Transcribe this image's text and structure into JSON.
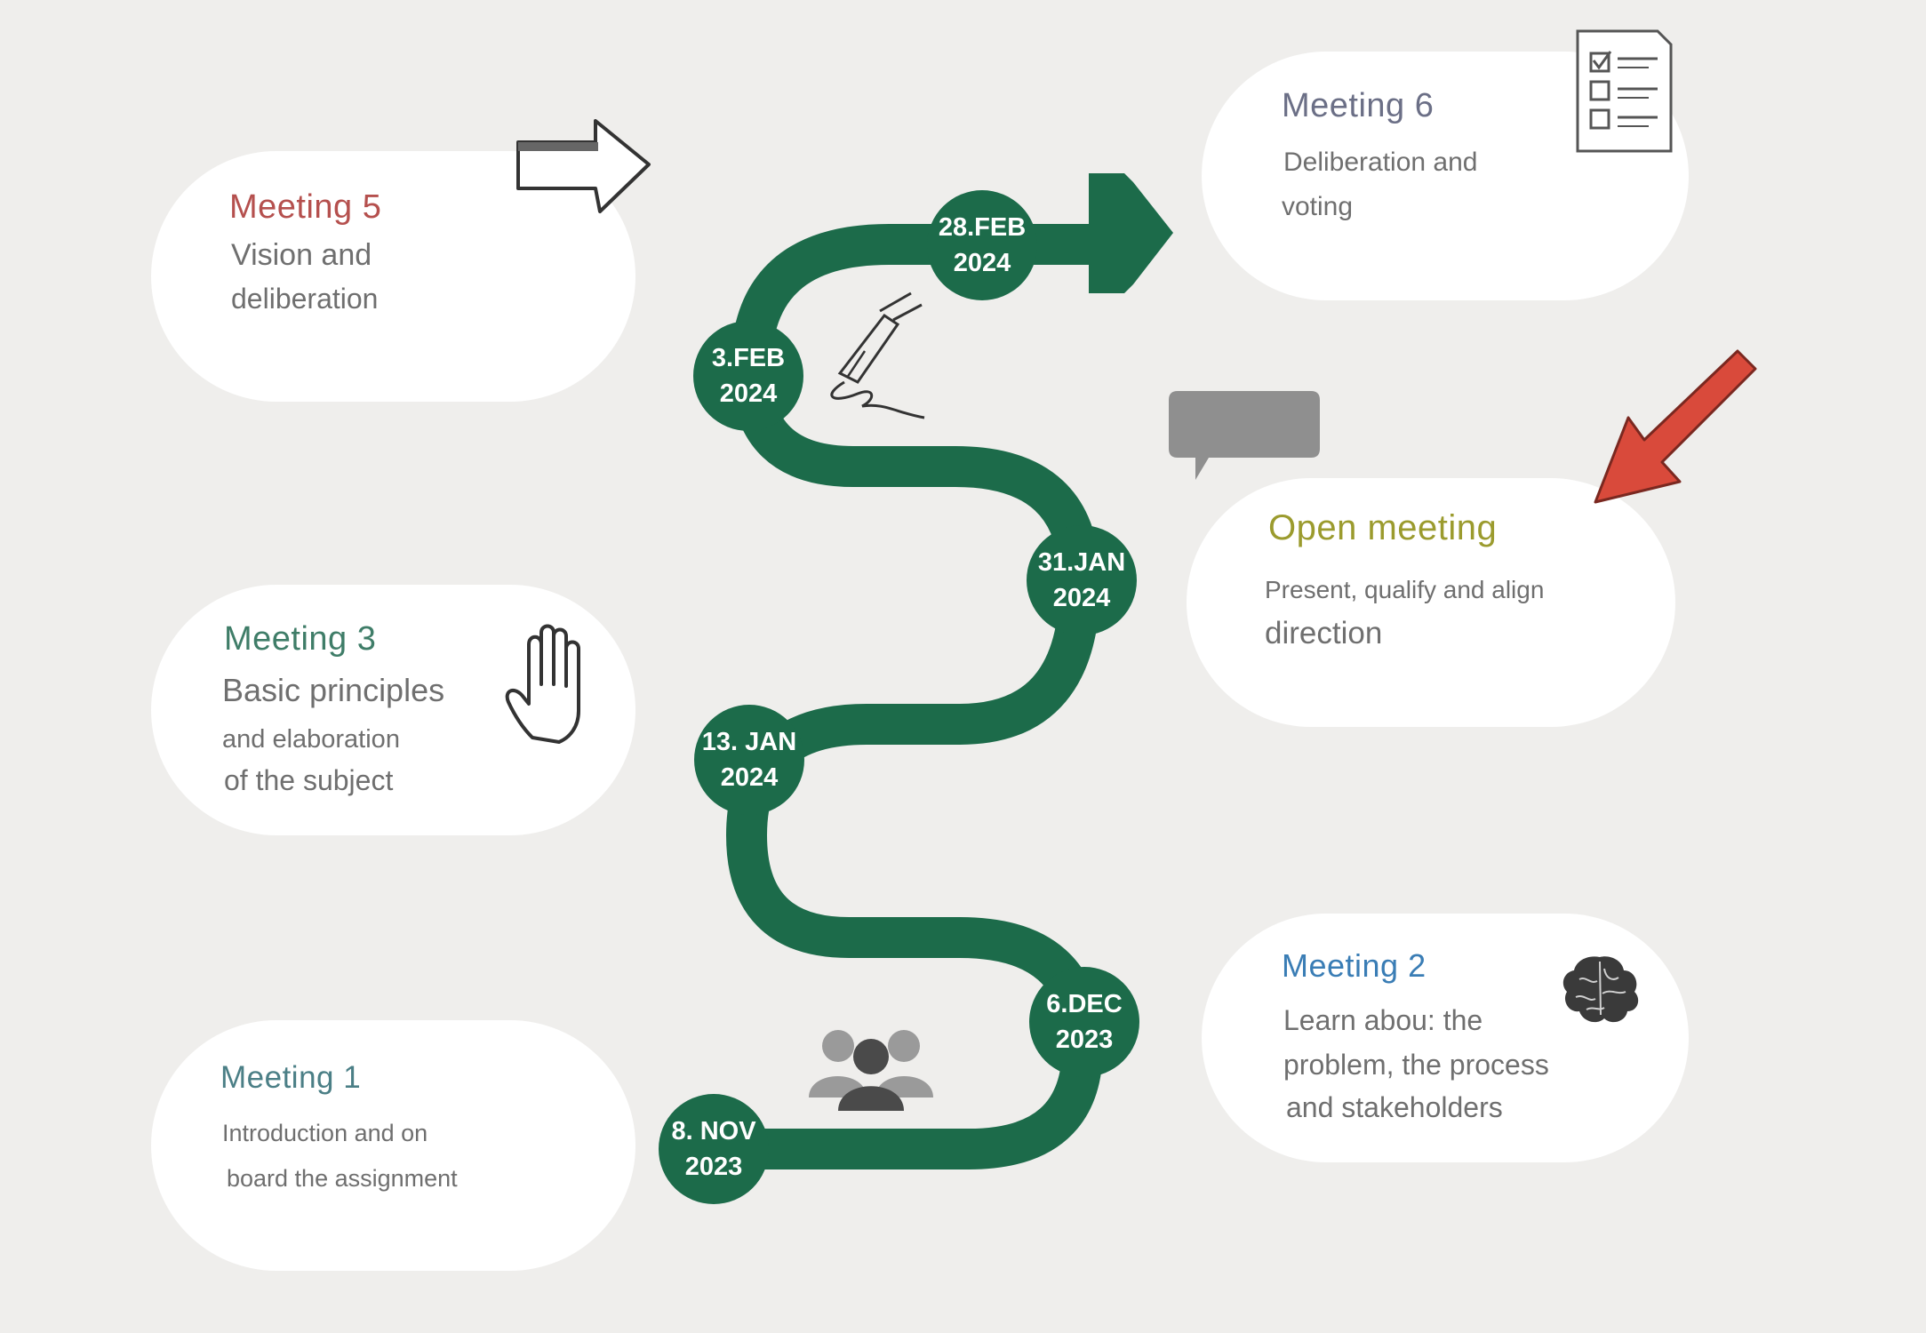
{
  "colors": {
    "background": "#efeeec",
    "path": "#1c6b4a",
    "meeting5_title": "#b5504e",
    "meeting3_title": "#3f7d68",
    "meeting1_title": "#4b7f86",
    "meeting6_title": "#6b6f86",
    "open_meeting_title": "#9b9b2e",
    "meeting2_title": "#3a7db5",
    "body_text": "#6f6f6f",
    "red_arrow": "#d94a3b",
    "speech_bubble": "#8f8f8f"
  },
  "milestones": [
    {
      "day": "8. NOV",
      "year": "2023"
    },
    {
      "day": "6.DEC",
      "year": "2023"
    },
    {
      "day": "13. JAN",
      "year": "2024"
    },
    {
      "day": "31.JAN",
      "year": "2024"
    },
    {
      "day": "3.FEB",
      "year": "2024"
    },
    {
      "day": "28.FEB",
      "year": "2024"
    }
  ],
  "cards": {
    "meeting5": {
      "title": "Meeting 5",
      "lines": [
        "Vision and",
        "deliberation"
      ],
      "icon": "arrow-outline-icon"
    },
    "meeting3": {
      "title": "Meeting 3",
      "lines": [
        "Basic principles",
        "and elaboration",
        "of the subject"
      ],
      "icon": "hand-icon"
    },
    "meeting1": {
      "title": "Meeting 1",
      "lines": [
        "Introduction and on",
        "board the assignment"
      ],
      "icon": "people-group-icon"
    },
    "meeting6": {
      "title": "Meeting 6",
      "lines": [
        "Deliberation and",
        "voting"
      ],
      "icon": "checklist-icon"
    },
    "open_meeting": {
      "title": "Open meeting",
      "lines": [
        "Present, qualify and align",
        "direction"
      ],
      "icon": "speech-bubble-icon"
    },
    "meeting2": {
      "title": "Meeting 2",
      "lines": [
        "Learn abou: the",
        "problem, the process",
        "and stakeholders"
      ],
      "icon": "brain-icon"
    }
  }
}
